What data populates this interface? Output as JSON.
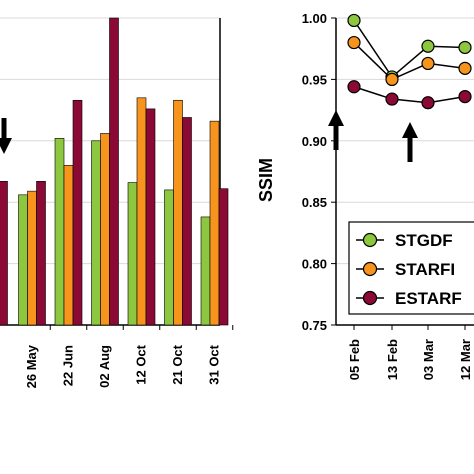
{
  "chart_data": [
    {
      "type": "bar",
      "title": "",
      "xlabel": "",
      "ylabel": "",
      "categories": [
        "26 May",
        "22 Jun",
        "02 Aug",
        "12 Oct",
        "21 Oct",
        "31 Oct"
      ],
      "partial_left_group": {
        "values": [
          0.855,
          0.86,
          0.867
        ]
      },
      "series": [
        {
          "color": "#8dc63f",
          "values": [
            0.856,
            0.902,
            0.9,
            0.866,
            0.86,
            0.838
          ]
        },
        {
          "color": "#f7941d",
          "values": [
            0.859,
            0.88,
            0.906,
            0.935,
            0.933,
            0.916
          ]
        },
        {
          "color": "#8b0a35",
          "values": [
            0.867,
            0.933,
            1.005,
            0.926,
            0.919,
            0.861
          ]
        }
      ],
      "ylim": [
        0.75,
        1.0
      ],
      "grid": true,
      "annotations": [
        {
          "type": "arrow",
          "direction": "down"
        }
      ]
    },
    {
      "type": "line",
      "title": "",
      "xlabel": "",
      "ylabel": "SSIM",
      "categories": [
        "05 Feb",
        "13 Feb",
        "03 Mar",
        "12 Mar"
      ],
      "series": [
        {
          "name": "STGDF",
          "color": "#8dc63f",
          "values": [
            0.998,
            0.952,
            0.977,
            0.976
          ]
        },
        {
          "name": "STARFI",
          "color": "#f7941d",
          "values": [
            0.98,
            0.95,
            0.963,
            0.959
          ]
        },
        {
          "name": "ESTARF",
          "color": "#8b0a35",
          "values": [
            0.944,
            0.934,
            0.931,
            0.936
          ]
        }
      ],
      "ylim": [
        0.75,
        1.0
      ],
      "yticks": [
        "1.00",
        "0.95",
        "0.90",
        "0.85",
        "0.80",
        "0.75"
      ],
      "grid": true,
      "legend": "bottom-right",
      "annotations": [
        {
          "type": "arrow",
          "direction": "up"
        },
        {
          "type": "arrow",
          "direction": "up"
        }
      ]
    }
  ]
}
